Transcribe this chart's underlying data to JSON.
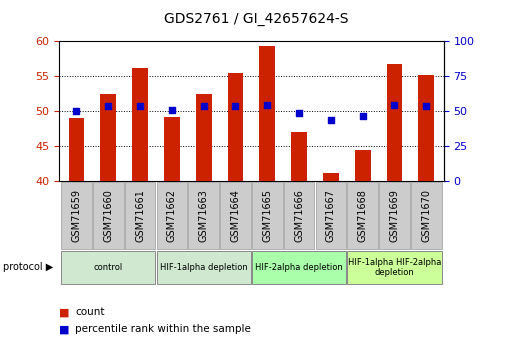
{
  "title": "GDS2761 / GI_42657624-S",
  "samples": [
    "GSM71659",
    "GSM71660",
    "GSM71661",
    "GSM71662",
    "GSM71663",
    "GSM71664",
    "GSM71665",
    "GSM71666",
    "GSM71667",
    "GSM71668",
    "GSM71669",
    "GSM71670"
  ],
  "counts": [
    49.0,
    52.5,
    56.2,
    49.2,
    52.5,
    55.5,
    59.3,
    47.0,
    41.2,
    44.5,
    56.8,
    55.2
  ],
  "percentiles": [
    50.0,
    53.5,
    54.0,
    51.2,
    53.5,
    54.0,
    54.5,
    49.0,
    43.5,
    46.5,
    54.5,
    54.0
  ],
  "ylim": [
    40,
    60
  ],
  "y2lim": [
    0,
    100
  ],
  "yticks": [
    40,
    45,
    50,
    55,
    60
  ],
  "y2ticks": [
    0,
    25,
    50,
    75,
    100
  ],
  "bar_color": "#cc2200",
  "dot_color": "#0000cc",
  "bar_width": 0.5,
  "proto_groups": [
    {
      "start": 0,
      "end": 2,
      "label": "control",
      "color": "#d0e8d0"
    },
    {
      "start": 3,
      "end": 5,
      "label": "HIF-1alpha depletion",
      "color": "#d0e8d0"
    },
    {
      "start": 6,
      "end": 8,
      "label": "HIF-2alpha depletion",
      "color": "#aaffaa"
    },
    {
      "start": 9,
      "end": 11,
      "label": "HIF-1alpha HIF-2alpha\ndepletion",
      "color": "#ccff99"
    }
  ],
  "ylabel_color": "#cc2200",
  "y2label_color": "#0000cc",
  "title_fontsize": 10,
  "tick_fontsize": 8,
  "small_fontsize": 7
}
